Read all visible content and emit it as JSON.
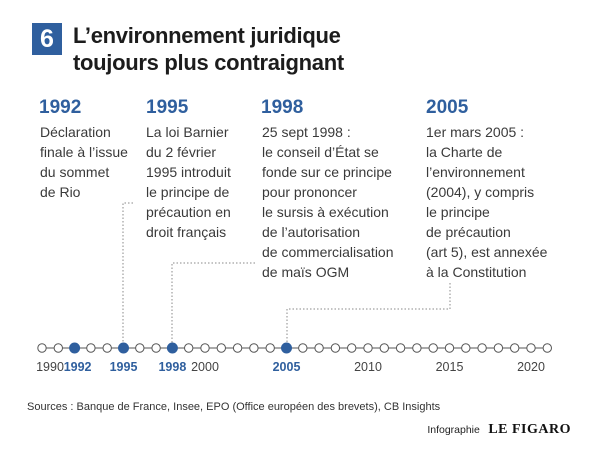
{
  "header": {
    "number": "6",
    "title_lines": [
      "L’environnement juridique",
      "toujours plus contraignant"
    ]
  },
  "events": [
    {
      "year": "1992",
      "lines": [
        "Déclaration",
        "finale à l’issue",
        "du sommet",
        "de Rio"
      ]
    },
    {
      "year": "1995",
      "lines": [
        "La loi Barnier",
        "du 2 février",
        "1995 introduit",
        "le principe de",
        "précaution en",
        "droit français"
      ]
    },
    {
      "year": "1998",
      "lines": [
        "25 sept 1998 :",
        "le conseil d’État se",
        "fonde sur ce principe",
        "pour prononcer",
        "le sursis à exécution",
        "de l’autorisation",
        "de commercialisation",
        "de maïs OGM"
      ]
    },
    {
      "year": "2005",
      "lines": [
        "1er mars 2005 :",
        "la Charte de",
        "l’environnement",
        "(2004), y compris",
        "le principe",
        "de précaution",
        "(art 5), est annexée",
        "à la Constitution"
      ]
    }
  ],
  "timeline": {
    "start_year": 1990,
    "end_year": 2021,
    "highlighted_years": [
      1992,
      1995,
      1998,
      2005
    ],
    "axis_labels": [
      "1990",
      "1992",
      "1995",
      "1998",
      "2000",
      "2005",
      "2010",
      "2015",
      "2020"
    ],
    "highlight_color": "#2f5f9e",
    "line_color": "#555555"
  },
  "footer": {
    "sources": "Sources : Banque de France, Insee, EPO (Office européen des brevets), CB Insights",
    "credit_prefix": "Infographie",
    "credit_brand": "LE FIGARO"
  }
}
